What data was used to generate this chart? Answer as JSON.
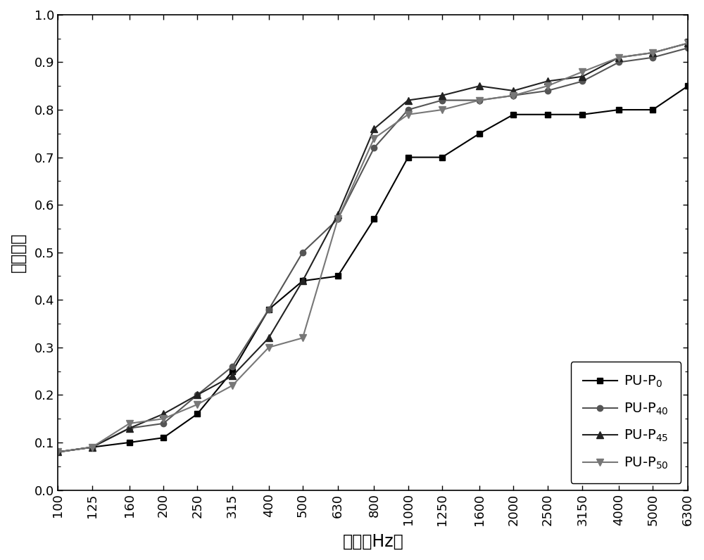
{
  "x_freqs": [
    100,
    125,
    160,
    200,
    250,
    315,
    400,
    500,
    630,
    800,
    1000,
    1250,
    1600,
    2000,
    2500,
    3150,
    4000,
    5000,
    6300
  ],
  "series": {
    "PU-P_0": {
      "label_base": "PU-P",
      "label_sub": "0",
      "marker": "s",
      "color": "#000000",
      "linewidth": 1.5,
      "markersize": 6,
      "data": [
        0.08,
        0.09,
        0.1,
        0.11,
        0.16,
        0.25,
        0.38,
        0.44,
        0.45,
        0.57,
        0.7,
        0.7,
        0.75,
        0.79,
        0.79,
        0.79,
        0.8,
        0.8,
        0.85
      ]
    },
    "PU-P_40": {
      "label_base": "PU-P",
      "label_sub": "40",
      "marker": "o",
      "color": "#555555",
      "linewidth": 1.5,
      "markersize": 6,
      "data": [
        0.08,
        0.09,
        0.13,
        0.14,
        0.2,
        0.26,
        0.38,
        0.5,
        0.57,
        0.72,
        0.8,
        0.82,
        0.82,
        0.83,
        0.84,
        0.86,
        0.9,
        0.91,
        0.93
      ]
    },
    "PU-P_45": {
      "label_base": "PU-P",
      "label_sub": "45",
      "marker": "^",
      "color": "#222222",
      "linewidth": 1.5,
      "markersize": 7,
      "data": [
        0.08,
        0.09,
        0.13,
        0.16,
        0.2,
        0.24,
        0.32,
        0.44,
        0.58,
        0.76,
        0.82,
        0.83,
        0.85,
        0.84,
        0.86,
        0.87,
        0.91,
        0.92,
        0.94
      ]
    },
    "PU-P_50": {
      "label_base": "PU-P",
      "label_sub": "50",
      "marker": "v",
      "color": "#777777",
      "linewidth": 1.5,
      "markersize": 7,
      "data": [
        0.08,
        0.09,
        0.14,
        0.15,
        0.18,
        0.22,
        0.3,
        0.32,
        0.57,
        0.74,
        0.79,
        0.8,
        0.82,
        0.83,
        0.85,
        0.88,
        0.91,
        0.92,
        0.94
      ]
    }
  },
  "xlabel": "频率（Hz）",
  "ylabel": "吸声系数",
  "ylim": [
    0.0,
    1.0
  ],
  "yticks": [
    0.0,
    0.1,
    0.2,
    0.3,
    0.4,
    0.5,
    0.6,
    0.7,
    0.8,
    0.9,
    1.0
  ],
  "background_color": "#ffffff",
  "legend_loc": "lower right",
  "fontsize_labels": 17,
  "fontsize_ticks": 13
}
